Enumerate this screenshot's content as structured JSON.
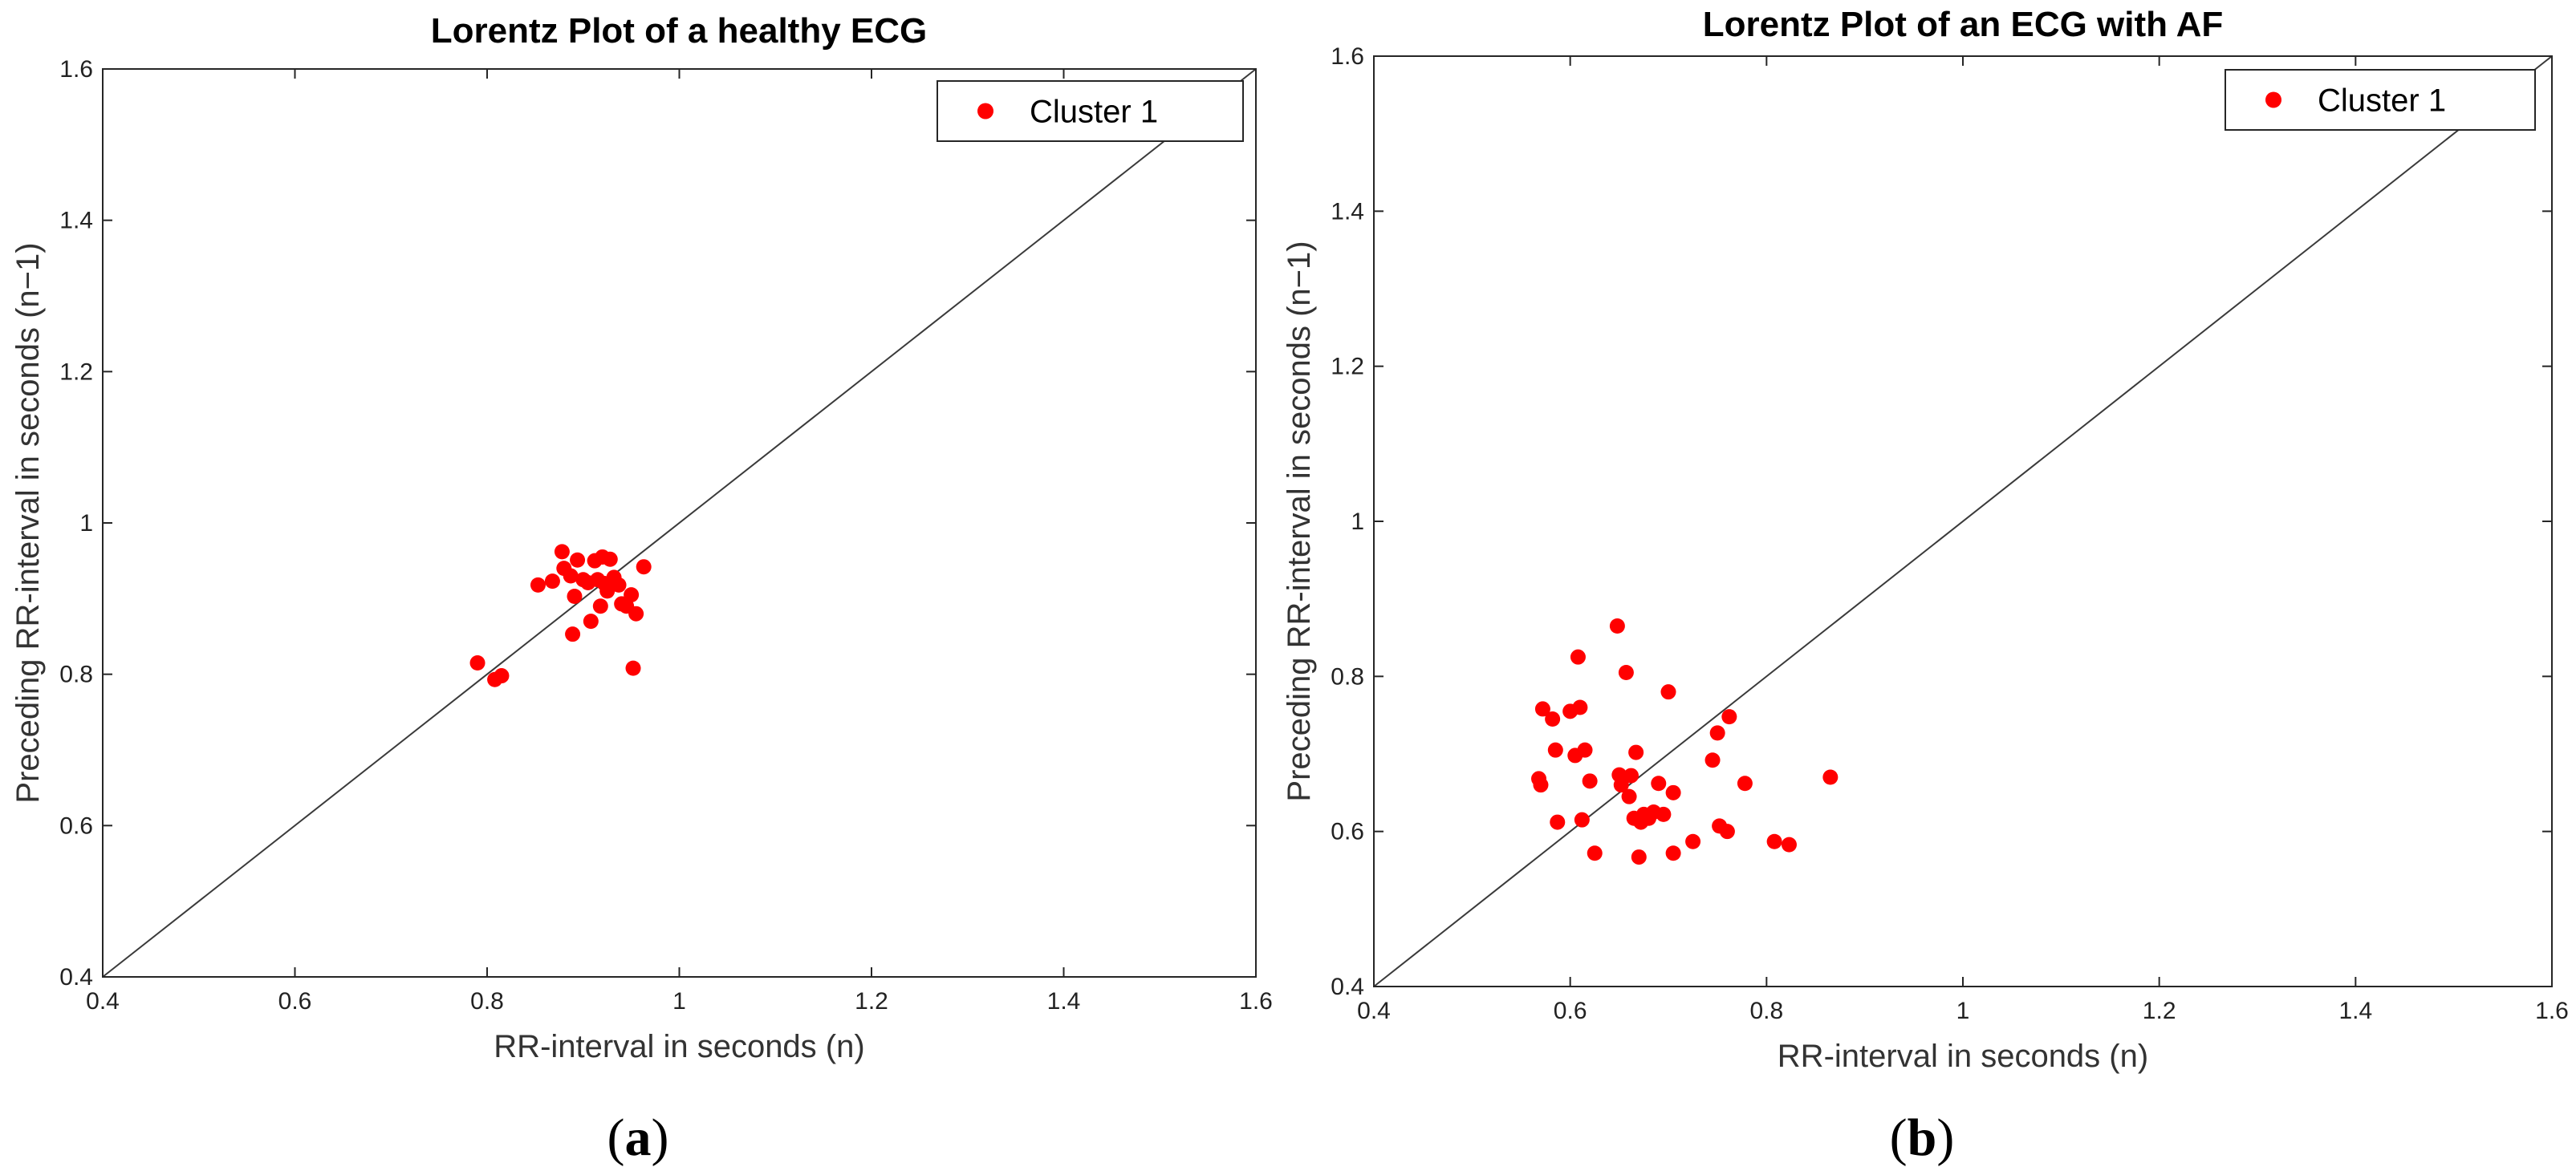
{
  "chart_data": [
    {
      "type": "scatter",
      "panel_label": "(a)",
      "panel_label_letter": "a",
      "title": "Lorentz Plot of a healthy ECG",
      "xlabel": "RR-interval in seconds (n)",
      "ylabel": "Preceding RR-interval in seconds (n−1)",
      "xlim": [
        0.4,
        1.6
      ],
      "ylim": [
        0.4,
        1.6
      ],
      "xticks": [
        "0.4",
        "0.6",
        "0.8",
        "1",
        "1.2",
        "1.4",
        "1.6"
      ],
      "yticks": [
        "0.4",
        "0.6",
        "0.8",
        "1",
        "1.2",
        "1.4",
        "1.6"
      ],
      "grid": false,
      "legend_position": "top-right",
      "reference_line": "identity",
      "marker_color": "#ff0000",
      "series": [
        {
          "name": "Cluster 1",
          "points": [
            [
              0.79,
              0.815
            ],
            [
              0.808,
              0.793
            ],
            [
              0.815,
              0.798
            ],
            [
              0.853,
              0.918
            ],
            [
              0.868,
              0.923
            ],
            [
              0.878,
              0.962
            ],
            [
              0.88,
              0.94
            ],
            [
              0.887,
              0.93
            ],
            [
              0.889,
              0.853
            ],
            [
              0.891,
              0.903
            ],
            [
              0.894,
              0.951
            ],
            [
              0.9,
              0.925
            ],
            [
              0.905,
              0.921
            ],
            [
              0.908,
              0.87
            ],
            [
              0.912,
              0.95
            ],
            [
              0.915,
              0.925
            ],
            [
              0.918,
              0.89
            ],
            [
              0.92,
              0.955
            ],
            [
              0.922,
              0.92
            ],
            [
              0.925,
              0.91
            ],
            [
              0.928,
              0.952
            ],
            [
              0.932,
              0.928
            ],
            [
              0.937,
              0.918
            ],
            [
              0.94,
              0.893
            ],
            [
              0.945,
              0.89
            ],
            [
              0.95,
              0.905
            ],
            [
              0.952,
              0.808
            ],
            [
              0.955,
              0.88
            ],
            [
              0.963,
              0.942
            ]
          ]
        }
      ]
    },
    {
      "type": "scatter",
      "panel_label": "(b)",
      "panel_label_letter": "b",
      "title": "Lorentz Plot of an ECG with AF",
      "xlabel": "RR-interval in seconds (n)",
      "ylabel": "Preceding RR-interval in seconds (n−1)",
      "xlim": [
        0.4,
        1.6
      ],
      "ylim": [
        0.4,
        1.6
      ],
      "xticks": [
        "0.4",
        "0.6",
        "0.8",
        "1",
        "1.2",
        "1.4",
        "1.6"
      ],
      "yticks": [
        "0.4",
        "0.6",
        "0.8",
        "1",
        "1.2",
        "1.4",
        "1.6"
      ],
      "grid": false,
      "legend_position": "top-right",
      "reference_line": "identity",
      "marker_color": "#ff0000",
      "series": [
        {
          "name": "Cluster 1",
          "points": [
            [
              0.568,
              0.668
            ],
            [
              0.57,
              0.66
            ],
            [
              0.572,
              0.758
            ],
            [
              0.582,
              0.745
            ],
            [
              0.585,
              0.705
            ],
            [
              0.587,
              0.612
            ],
            [
              0.6,
              0.755
            ],
            [
              0.605,
              0.698
            ],
            [
              0.608,
              0.825
            ],
            [
              0.61,
              0.76
            ],
            [
              0.612,
              0.615
            ],
            [
              0.615,
              0.705
            ],
            [
              0.62,
              0.665
            ],
            [
              0.625,
              0.572
            ],
            [
              0.648,
              0.865
            ],
            [
              0.65,
              0.673
            ],
            [
              0.652,
              0.66
            ],
            [
              0.657,
              0.805
            ],
            [
              0.66,
              0.645
            ],
            [
              0.662,
              0.672
            ],
            [
              0.665,
              0.617
            ],
            [
              0.667,
              0.702
            ],
            [
              0.67,
              0.567
            ],
            [
              0.672,
              0.612
            ],
            [
              0.675,
              0.622
            ],
            [
              0.68,
              0.617
            ],
            [
              0.685,
              0.625
            ],
            [
              0.69,
              0.662
            ],
            [
              0.695,
              0.622
            ],
            [
              0.7,
              0.78
            ],
            [
              0.705,
              0.572
            ],
            [
              0.705,
              0.65
            ],
            [
              0.725,
              0.587
            ],
            [
              0.745,
              0.692
            ],
            [
              0.75,
              0.727
            ],
            [
              0.752,
              0.607
            ],
            [
              0.76,
              0.6
            ],
            [
              0.762,
              0.748
            ],
            [
              0.778,
              0.662
            ],
            [
              0.808,
              0.587
            ],
            [
              0.823,
              0.583
            ],
            [
              0.865,
              0.67
            ]
          ]
        }
      ]
    }
  ]
}
